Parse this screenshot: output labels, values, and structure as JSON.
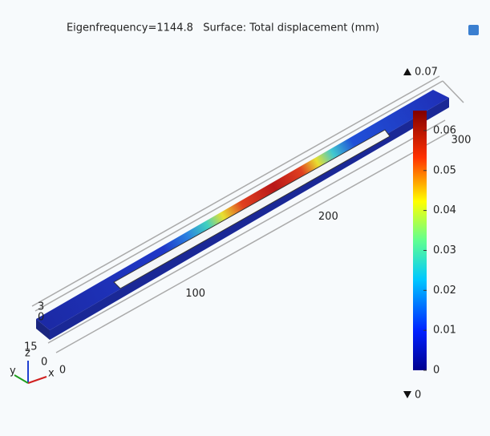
{
  "title": "Eigenfrequency=1144.8   Surface: Total displacement (mm)",
  "colorbar": {
    "max_label": 0.07,
    "min_label": 0,
    "range": [
      0,
      0.065
    ],
    "ticks": [
      0,
      0.01,
      0.02,
      0.03,
      0.04,
      0.05,
      0.06
    ]
  },
  "length_axis": {
    "range": [
      0,
      300
    ],
    "ticks": [
      0,
      100,
      200,
      300
    ]
  },
  "width_axis": {
    "labels": [
      "3",
      "0"
    ]
  },
  "depth_axis": {
    "labels": [
      "15",
      "0"
    ]
  },
  "triad": {
    "x": "x",
    "y": "y",
    "z": "z"
  }
}
